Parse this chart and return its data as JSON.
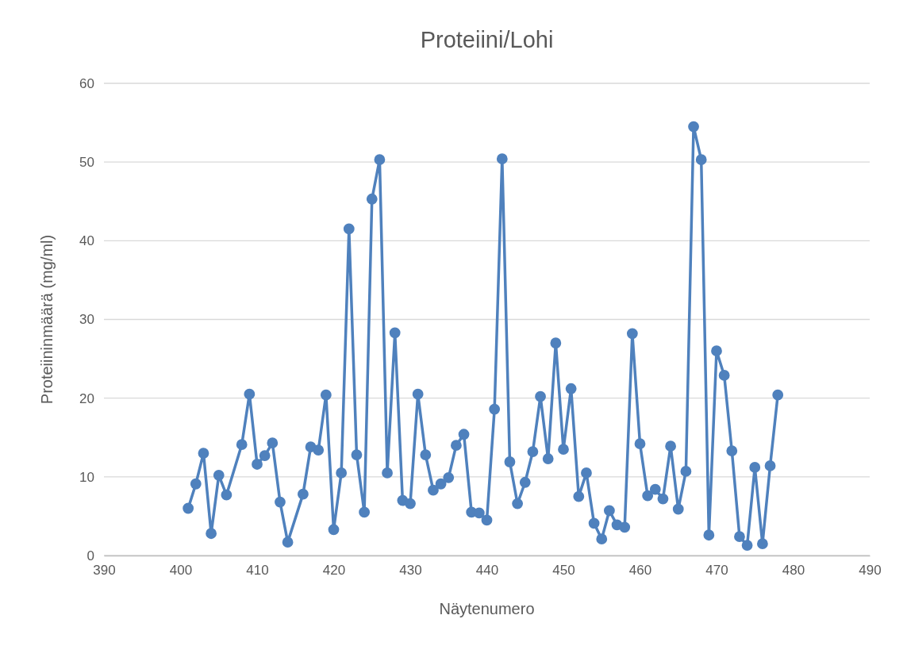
{
  "chart_data": {
    "type": "line",
    "title": "Proteiini/Lohi",
    "xlabel": "Näytenumero",
    "ylabel": "Proteiininmäärä (mg/ml)",
    "xlim": [
      390,
      490
    ],
    "xticks": [
      390,
      400,
      410,
      420,
      430,
      440,
      450,
      460,
      470,
      480,
      490
    ],
    "ylim": [
      0,
      60
    ],
    "yticks": [
      0,
      10,
      20,
      30,
      40,
      50,
      60
    ],
    "grid": "y",
    "marker": "circle",
    "line_style": "solid",
    "series": [
      {
        "color": "#4f81bd",
        "x": [
          401,
          402,
          403,
          404,
          405,
          406,
          408,
          409,
          410,
          411,
          412,
          413,
          414,
          416,
          417,
          418,
          419,
          420,
          421,
          422,
          423,
          424,
          425,
          426,
          427,
          428,
          429,
          430,
          431,
          432,
          433,
          434,
          435,
          436,
          437,
          438,
          439,
          440,
          441,
          442,
          443,
          444,
          445,
          446,
          447,
          448,
          449,
          450,
          451,
          452,
          453,
          454,
          455,
          456,
          457,
          458,
          459,
          460,
          461,
          462,
          463,
          464,
          465,
          466,
          467,
          468,
          469,
          470,
          471,
          472,
          473,
          474,
          475,
          476,
          477,
          478
        ],
        "values": [
          6.0,
          9.1,
          13.0,
          2.8,
          10.2,
          7.7,
          14.1,
          20.5,
          11.6,
          12.7,
          14.3,
          6.8,
          1.7,
          7.8,
          13.8,
          13.4,
          20.4,
          3.3,
          10.5,
          41.5,
          12.8,
          5.5,
          45.3,
          50.3,
          10.5,
          28.3,
          7.0,
          6.6,
          20.5,
          12.8,
          8.3,
          9.1,
          9.9,
          14.0,
          15.4,
          5.5,
          5.4,
          4.5,
          18.6,
          50.4,
          11.9,
          6.6,
          9.3,
          13.2,
          20.2,
          12.3,
          27.0,
          13.5,
          21.2,
          7.5,
          10.5,
          4.1,
          2.1,
          5.7,
          3.9,
          3.6,
          28.2,
          14.2,
          7.6,
          8.4,
          7.2,
          13.9,
          5.9,
          10.7,
          54.5,
          50.3,
          2.6,
          26.0,
          22.9,
          13.3,
          2.4,
          1.3,
          11.2,
          1.5,
          11.4,
          20.4
        ]
      }
    ]
  }
}
